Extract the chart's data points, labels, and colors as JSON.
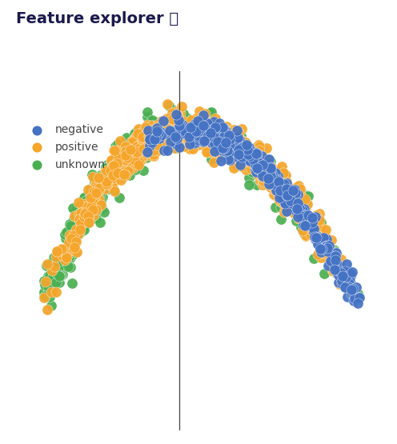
{
  "title": "Feature explorer ⓘ",
  "title_color": "#1a1a4e",
  "title_fontsize": 14,
  "background_color": "#ffffff",
  "plot_bg_color": "#ffffff",
  "grid_color": "#dde4f0",
  "vline_color": "#444444",
  "legend_labels": [
    "negative",
    "positive",
    "unknown"
  ],
  "colors": {
    "negative": "#4472c4",
    "positive": "#f5a52a",
    "unknown": "#4aaf50"
  },
  "point_size": 90,
  "alpha": 0.92,
  "seed": 7
}
